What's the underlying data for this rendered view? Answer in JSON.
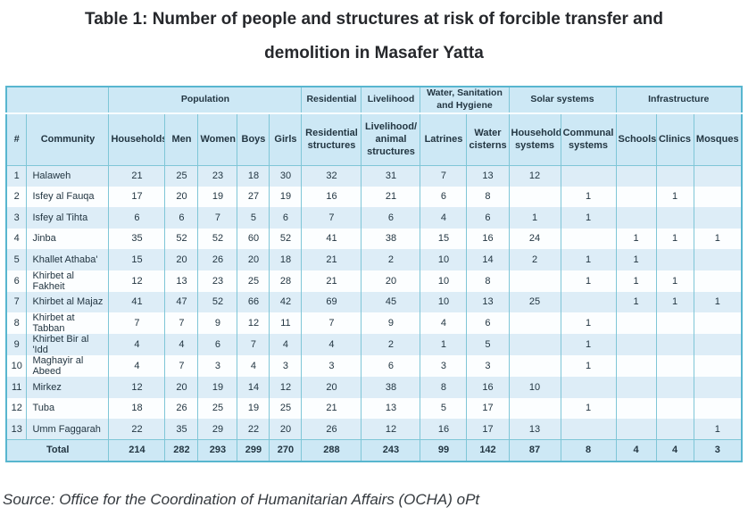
{
  "title": {
    "line1": "Table 1: Number of people and structures at risk of forcible transfer and",
    "line2": "demolition in Masafer Yatta"
  },
  "source": "Source: Office for the Coordination of Humanitarian Affairs (OCHA) oPt",
  "colors": {
    "header_bg": "#cde8f5",
    "row_stripe_bg": "#ddedf7",
    "row_plain_bg": "#fcfeff",
    "border_teal": "#58b6cf",
    "text": "#233642"
  },
  "table": {
    "group_headers": [
      {
        "label": "",
        "colspan": 2
      },
      {
        "label": "Population",
        "colspan": 5
      },
      {
        "label": "Residential",
        "colspan": 1
      },
      {
        "label": "Livelihood",
        "colspan": 1
      },
      {
        "label": "Water, Sanitation and Hygiene",
        "colspan": 2
      },
      {
        "label": "Solar systems",
        "colspan": 2
      },
      {
        "label": "Infrastructure",
        "colspan": 3
      }
    ],
    "columns": [
      "#",
      "Community",
      "Households",
      "Men",
      "Women",
      "Boys",
      "Girls",
      "Residential structures",
      "Livelihood/ animal structures",
      "Latrines",
      "Water cisterns",
      "Household systems",
      "Communal systems",
      "Schools",
      "Clinics",
      "Mosques"
    ],
    "rows": [
      [
        1,
        "Halaweh",
        21,
        25,
        23,
        18,
        30,
        32,
        31,
        7,
        13,
        12,
        "",
        "",
        "",
        ""
      ],
      [
        2,
        "Isfey al Fauqa",
        17,
        20,
        19,
        27,
        19,
        16,
        21,
        6,
        8,
        "",
        1,
        "",
        1,
        ""
      ],
      [
        3,
        "Isfey al Tihta",
        6,
        6,
        7,
        5,
        6,
        7,
        6,
        4,
        6,
        1,
        1,
        "",
        "",
        ""
      ],
      [
        4,
        "Jinba",
        35,
        52,
        52,
        60,
        52,
        41,
        38,
        15,
        16,
        24,
        "",
        1,
        1,
        1
      ],
      [
        5,
        "Khallet Athaba'",
        15,
        20,
        26,
        20,
        18,
        21,
        2,
        10,
        14,
        2,
        1,
        1,
        "",
        ""
      ],
      [
        6,
        "Khirbet al Fakheit",
        12,
        13,
        23,
        25,
        28,
        21,
        20,
        10,
        8,
        "",
        1,
        1,
        1,
        ""
      ],
      [
        7,
        "Khirbet al Majaz",
        41,
        47,
        52,
        66,
        42,
        69,
        45,
        10,
        13,
        25,
        "",
        1,
        1,
        1
      ],
      [
        8,
        "Khirbet at Tabban",
        7,
        7,
        9,
        12,
        11,
        7,
        9,
        4,
        6,
        "",
        1,
        "",
        "",
        ""
      ],
      [
        9,
        "Khirbet Bir al 'Idd",
        4,
        4,
        6,
        7,
        4,
        4,
        2,
        1,
        5,
        "",
        1,
        "",
        "",
        ""
      ],
      [
        10,
        "Maghayir al Abeed",
        4,
        7,
        3,
        4,
        3,
        3,
        6,
        3,
        3,
        "",
        1,
        "",
        "",
        ""
      ],
      [
        11,
        "Mirkez",
        12,
        20,
        19,
        14,
        12,
        20,
        38,
        8,
        16,
        10,
        "",
        "",
        "",
        ""
      ],
      [
        12,
        "Tuba",
        18,
        26,
        25,
        19,
        25,
        21,
        13,
        5,
        17,
        "",
        1,
        "",
        "",
        ""
      ],
      [
        13,
        "Umm Faggarah",
        22,
        35,
        29,
        22,
        20,
        26,
        12,
        16,
        17,
        13,
        "",
        "",
        "",
        1
      ]
    ],
    "total_label": "Total",
    "totals": [
      214,
      282,
      293,
      299,
      270,
      288,
      243,
      99,
      142,
      87,
      8,
      4,
      4,
      3
    ]
  }
}
